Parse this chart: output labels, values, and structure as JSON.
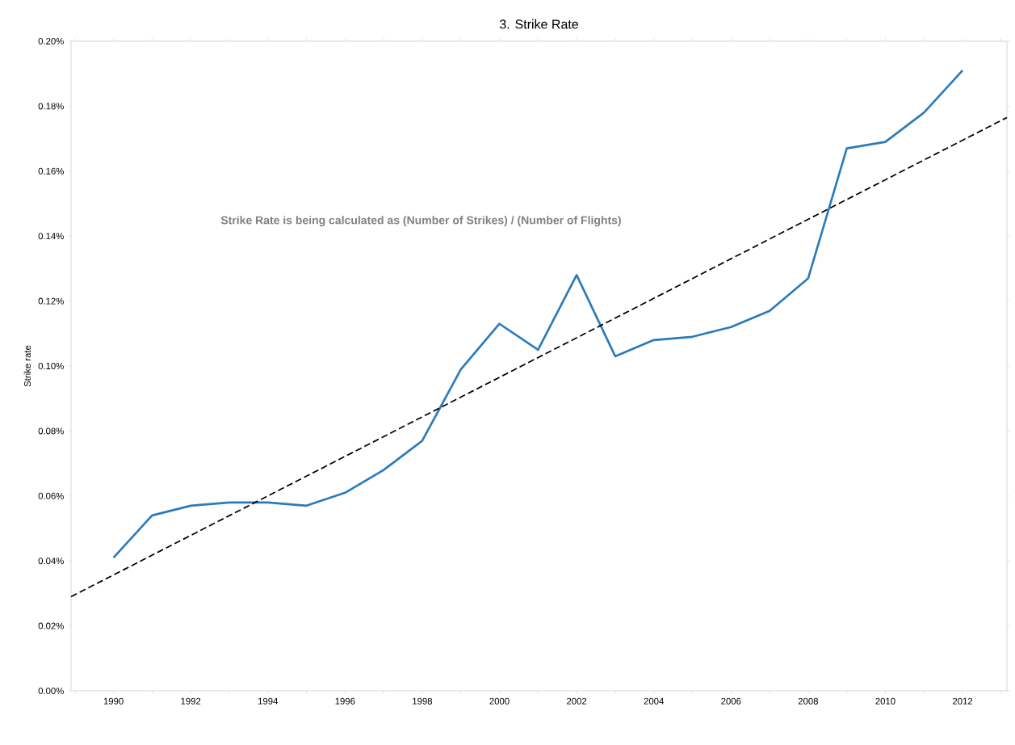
{
  "chart_data": {
    "type": "line",
    "title": "3. Strike Rate",
    "ylabel": "Strike rate",
    "annotations": [
      "Strike Rate is being calculated as (Number of Strikes) / (Number of Flights)"
    ],
    "x": [
      1990,
      1991,
      1992,
      1993,
      1994,
      1995,
      1996,
      1997,
      1998,
      1999,
      2000,
      2001,
      2002,
      2003,
      2004,
      2005,
      2006,
      2007,
      2008,
      2009,
      2010,
      2011,
      2012
    ],
    "series": [
      {
        "color": "#2b7bba",
        "values": [
          0.041,
          0.054,
          0.057,
          0.058,
          0.058,
          0.057,
          0.061,
          0.068,
          0.077,
          0.099,
          0.113,
          0.105,
          0.128,
          0.103,
          0.108,
          0.109,
          0.112,
          0.117,
          0.127,
          0.167,
          0.169,
          0.178,
          0.191
        ]
      },
      {
        "type": "line",
        "x": [
          1988.9,
          2013.15
        ],
        "values": [
          0.029,
          0.1765
        ],
        "color": "#000000",
        "line_style": "dashed"
      }
    ],
    "marker": "none",
    "xlim": [
      1988.9,
      2013.15
    ],
    "xticks": [
      {
        "value": 1989,
        "label": null
      },
      1990,
      {
        "value": 1991,
        "label": null
      },
      1992,
      {
        "value": 1993,
        "label": null
      },
      1994,
      {
        "value": 1995,
        "label": null
      },
      1996,
      {
        "value": 1997,
        "label": null
      },
      1998,
      {
        "value": 1999,
        "label": null
      },
      2000,
      {
        "value": 2001,
        "label": null
      },
      2002,
      {
        "value": 2003,
        "label": null
      },
      2004,
      {
        "value": 2005,
        "label": null
      },
      2006,
      {
        "value": 2007,
        "label": null
      },
      2008,
      {
        "value": 2009,
        "label": null
      },
      2010,
      {
        "value": 2011,
        "label": null
      },
      2012,
      {
        "value": 2013,
        "label": null
      }
    ],
    "ylim": [
      0,
      0.2
    ],
    "yticks": [
      {
        "value": 0,
        "label": "0.00%"
      },
      {
        "value": 0.02,
        "label": "0.02%"
      },
      {
        "value": 0.04,
        "label": "0.04%"
      },
      {
        "value": 0.06,
        "label": "0.06%"
      },
      {
        "value": 0.08,
        "label": "0.08%"
      },
      {
        "value": 0.1,
        "label": "0.10%"
      },
      {
        "value": 0.12,
        "label": "0.12%"
      },
      {
        "value": 0.14,
        "label": "0.14%"
      },
      {
        "value": 0.16,
        "label": "0.16%"
      },
      {
        "value": 0.18,
        "label": "0.18%"
      },
      {
        "value": 0.2,
        "label": "0.20%"
      }
    ]
  }
}
